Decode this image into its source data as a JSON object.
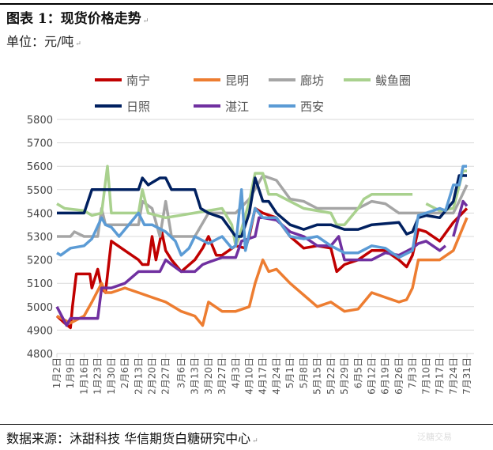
{
  "header": {
    "title": "图表 1：现货价格走势",
    "unit": "单位：元/吨",
    "paragraph_mark": "↵"
  },
  "footer": {
    "source": "数据来源：沐甜科技  华信期货白糖研究中心",
    "watermark": "泛糖交易"
  },
  "chart_data": {
    "type": "line",
    "title": "",
    "xlabel": "",
    "ylabel": "",
    "ylim": [
      4800,
      5800
    ],
    "yticks": [
      4800,
      4900,
      5000,
      5100,
      5200,
      5300,
      5400,
      5500,
      5600,
      5700,
      5800
    ],
    "grid": "horizontal",
    "legend_placement": "top",
    "xticks": [
      "1月2日",
      "1月9日",
      "1月16日",
      "1月23日",
      "1月30日",
      "2月6日",
      "2月13日",
      "2月20日",
      "2月27日",
      "3月6日",
      "3月13日",
      "3月20日",
      "3月27日",
      "4月3日",
      "4月10日",
      "4月17日",
      "4月24日",
      "5月1日",
      "5月8日",
      "5月15日",
      "5月22日",
      "5月29日",
      "6月5日",
      "6月12日",
      "6月19日",
      "6月26日",
      "7月3日",
      "7月10日",
      "7月17日",
      "7月24日",
      "7月31日"
    ],
    "series": [
      {
        "name": "南宁",
        "color": "#c00000",
        "points": [
          [
            "1月2日",
            4960
          ],
          [
            "1月6日",
            4930
          ],
          [
            "1月9日",
            4910
          ],
          [
            "1月10日",
            5000
          ],
          [
            "1月12日",
            5140
          ],
          [
            "1月19日",
            5140
          ],
          [
            "1月20日",
            5080
          ],
          [
            "1月23日",
            5160
          ],
          [
            "1月25日",
            5080
          ],
          [
            "1月27日",
            5060
          ],
          [
            "1月30日",
            5280
          ],
          [
            "2月6日",
            5240
          ],
          [
            "2月13日",
            5200
          ],
          [
            "2月15日",
            5180
          ],
          [
            "2月18日",
            5180
          ],
          [
            "2月20日",
            5300
          ],
          [
            "2月22日",
            5200
          ],
          [
            "2月25日",
            5320
          ],
          [
            "2月27日",
            5240
          ],
          [
            "3月1日",
            5200
          ],
          [
            "3月6日",
            5150
          ],
          [
            "3月13日",
            5200
          ],
          [
            "3月17日",
            5250
          ],
          [
            "3月20日",
            5300
          ],
          [
            "3月24日",
            5220
          ],
          [
            "3月27日",
            5220
          ],
          [
            "4月3日",
            5260
          ],
          [
            "4月8日",
            5250
          ],
          [
            "4月10日",
            5300
          ],
          [
            "4月13日",
            5420
          ],
          [
            "4月17日",
            5400
          ],
          [
            "4月24日",
            5380
          ],
          [
            "5月1日",
            5300
          ],
          [
            "5月8日",
            5250
          ],
          [
            "5月15日",
            5260
          ],
          [
            "5月22日",
            5250
          ],
          [
            "5月25日",
            5150
          ],
          [
            "5月29日",
            5180
          ],
          [
            "6月5日",
            5200
          ],
          [
            "6月12日",
            5240
          ],
          [
            "6月19日",
            5240
          ],
          [
            "6月26日",
            5200
          ],
          [
            "6月30日",
            5170
          ],
          [
            "7月3日",
            5220
          ],
          [
            "7月6日",
            5330
          ],
          [
            "7月10日",
            5320
          ],
          [
            "7月17日",
            5280
          ],
          [
            "7月24日",
            5360
          ],
          [
            "7月31日",
            5420
          ]
        ]
      },
      {
        "name": "昆明",
        "color": "#ed7d31",
        "points": [
          [
            "1月2日",
            4960
          ],
          [
            "1月9日",
            4930
          ],
          [
            "1月16日",
            4960
          ],
          [
            "1月20日",
            5020
          ],
          [
            "1月25日",
            5100
          ],
          [
            "1月27日",
            5060
          ],
          [
            "1月30日",
            5060
          ],
          [
            "2月6日",
            5080
          ],
          [
            "2月13日",
            5060
          ],
          [
            "2月20日",
            5040
          ],
          [
            "2月27日",
            5020
          ],
          [
            "3月6日",
            4980
          ],
          [
            "3月13日",
            4960
          ],
          [
            "3月17日",
            4920
          ],
          [
            "3月20日",
            5020
          ],
          [
            "3月27日",
            4980
          ],
          [
            "4月3日",
            4980
          ],
          [
            "4月10日",
            5000
          ],
          [
            "4月13日",
            5100
          ],
          [
            "4月17日",
            5200
          ],
          [
            "4月20日",
            5150
          ],
          [
            "4月24日",
            5160
          ],
          [
            "5月1日",
            5100
          ],
          [
            "5月8日",
            5050
          ],
          [
            "5月15日",
            5000
          ],
          [
            "5月22日",
            5020
          ],
          [
            "5月29日",
            4980
          ],
          [
            "6月5日",
            4990
          ],
          [
            "6月12日",
            5060
          ],
          [
            "6月19日",
            5040
          ],
          [
            "6月26日",
            5020
          ],
          [
            "6月30日",
            5030
          ],
          [
            "7月3日",
            5080
          ],
          [
            "7月6日",
            5200
          ],
          [
            "7月10日",
            5200
          ],
          [
            "7月17日",
            5200
          ],
          [
            "7月24日",
            5240
          ],
          [
            "7月31日",
            5380
          ]
        ]
      },
      {
        "name": "廊坊",
        "color": "#a5a5a5",
        "points": [
          [
            "1月2日",
            5300
          ],
          [
            "1月9日",
            5300
          ],
          [
            "1月11日",
            5320
          ],
          [
            "1月16日",
            5300
          ],
          [
            "1月23日",
            5300
          ],
          [
            "1月25日",
            5420
          ],
          [
            "1月27日",
            5350
          ],
          [
            "2月6日",
            5350
          ],
          [
            "2月13日",
            5350
          ],
          [
            "2月15日",
            5450
          ],
          [
            "2月20日",
            5420
          ],
          [
            "2月24日",
            5300
          ],
          [
            "2月27日",
            5450
          ],
          [
            "3月1日",
            5300
          ],
          [
            "3月13日",
            5300
          ],
          [
            "3月20日",
            5400
          ],
          [
            "4月3日",
            5400
          ],
          [
            "4月10日",
            5460
          ],
          [
            "4月17日",
            5560
          ],
          [
            "4月24日",
            5540
          ],
          [
            "5月1日",
            5460
          ],
          [
            "5月8日",
            5450
          ],
          [
            "5月15日",
            5420
          ],
          [
            "6月5日",
            5420
          ],
          [
            "6月12日",
            5450
          ],
          [
            "6月19日",
            5440
          ],
          [
            "6月26日",
            5400
          ],
          [
            "7月24日",
            5400
          ],
          [
            "7月27日",
            5450
          ],
          [
            "7月31日",
            5520
          ]
        ]
      },
      {
        "name": "鲅鱼圈",
        "color": "#a9d18e",
        "points": [
          [
            "1月2日",
            5440
          ],
          [
            "1月6日",
            5420
          ],
          [
            "1月16日",
            5410
          ],
          [
            "1月20日",
            5390
          ],
          [
            "1月25日",
            5400
          ],
          [
            "1月28日",
            5600
          ],
          [
            "1月30日",
            5400
          ],
          [
            "2月13日",
            5400
          ],
          [
            "2月15日",
            5500
          ],
          [
            "2月18日",
            5400
          ],
          [
            "2月27日",
            5380
          ],
          [
            "3月27日",
            5420
          ],
          [
            "4月1日",
            5350
          ],
          [
            "4月3日",
            5260
          ],
          [
            "4月5日",
            5300
          ],
          [
            "4月10日",
            5450
          ],
          [
            "4月13日",
            5570
          ],
          [
            "4月17日",
            5570
          ],
          [
            "4月20日",
            5480
          ],
          [
            "4月24日",
            5480
          ],
          [
            "5月1日",
            5450
          ],
          [
            "5月8日",
            5420
          ],
          [
            "5月22日",
            5400
          ],
          [
            "5月25日",
            5350
          ],
          [
            "5月29日",
            5350
          ],
          [
            "6月5日",
            5420
          ],
          [
            "6月8日",
            5460
          ],
          [
            "6月12日",
            5480
          ],
          [
            "7月3日",
            5480
          ],
          null,
          [
            "7月10日",
            5440
          ],
          [
            "7月17日",
            5410
          ],
          [
            "7月24日",
            5420
          ],
          [
            "7月29日",
            5580
          ],
          [
            "7月31日",
            5580
          ]
        ]
      },
      {
        "name": "日照",
        "color": "#002060",
        "points": [
          [
            "1月2日",
            5400
          ],
          [
            "1月16日",
            5400
          ],
          [
            "1月20日",
            5500
          ],
          [
            "2月13日",
            5500
          ],
          [
            "2月15日",
            5550
          ],
          [
            "2月18日",
            5520
          ],
          [
            "2月20日",
            5530
          ],
          [
            "2月24日",
            5550
          ],
          [
            "2月27日",
            5550
          ],
          [
            "3月1日",
            5500
          ],
          [
            "3月13日",
            5500
          ],
          [
            "3月16日",
            5420
          ],
          [
            "3月20日",
            5400
          ],
          [
            "3月27日",
            5380
          ],
          [
            "4月3日",
            5300
          ],
          [
            "4月6日",
            5300
          ],
          [
            "4月10日",
            5400
          ],
          [
            "4月13日",
            5550
          ],
          [
            "4月17日",
            5450
          ],
          [
            "4月20日",
            5450
          ],
          [
            "4月24日",
            5400
          ],
          [
            "5月1日",
            5350
          ],
          [
            "5月8日",
            5330
          ],
          [
            "5月15日",
            5350
          ],
          [
            "5月22日",
            5350
          ],
          [
            "5月29日",
            5330
          ],
          [
            "6月5日",
            5330
          ],
          [
            "6月12日",
            5350
          ],
          [
            "6月26日",
            5360
          ],
          [
            "6月30日",
            5310
          ],
          [
            "7月3日",
            5320
          ],
          [
            "7月6日",
            5380
          ],
          [
            "7月10日",
            5390
          ],
          [
            "7月17日",
            5380
          ],
          [
            "7月24日",
            5450
          ],
          [
            "7月27日",
            5560
          ],
          [
            "7月31日",
            5560
          ]
        ]
      },
      {
        "name": "湛江",
        "color": "#7030a0",
        "points": [
          [
            "1月2日",
            5000
          ],
          [
            "1月7日",
            4920
          ],
          [
            "1月9日",
            4950
          ],
          [
            "1月23日",
            4950
          ],
          [
            "1月25日",
            5080
          ],
          [
            "1月30日",
            5080
          ],
          [
            "2月6日",
            5100
          ],
          [
            "2月13日",
            5150
          ],
          [
            "2月24日",
            5150
          ],
          [
            "2月27日",
            5200
          ],
          [
            "3月1日",
            5180
          ],
          [
            "3月6日",
            5150
          ],
          [
            "3月13日",
            5150
          ],
          [
            "3月17日",
            5180
          ],
          [
            "3月20日",
            5190
          ],
          [
            "3月27日",
            5210
          ],
          [
            "4月3日",
            5210
          ],
          [
            "4月6日",
            5280
          ],
          [
            "4月13日",
            5300
          ],
          [
            "4月15日",
            5380
          ],
          [
            "4月17日",
            5380
          ],
          [
            "4月24日",
            5370
          ],
          [
            "5月1日",
            5320
          ],
          [
            "5月8日",
            5300
          ],
          [
            "5月15日",
            5260
          ],
          [
            "5月22日",
            5260
          ],
          [
            "5月26日",
            5300
          ],
          [
            "5月29日",
            5200
          ],
          [
            "6月12日",
            5200
          ],
          [
            "6月19日",
            5230
          ],
          [
            "6月26日",
            5220
          ],
          [
            "7月3日",
            5250
          ],
          [
            "7月6日",
            5270
          ],
          [
            "7月10日",
            5280
          ],
          [
            "7月17日",
            5240
          ],
          [
            "7月20日",
            5260
          ],
          null,
          [
            "7月24日",
            5300
          ],
          [
            "7月29日",
            5450
          ],
          [
            "7月31日",
            5430
          ]
        ]
      },
      {
        "name": "西安",
        "color": "#5b9bd5",
        "points": [
          [
            "1月2日",
            5230
          ],
          [
            "1月4日",
            5220
          ],
          [
            "1月9日",
            5250
          ],
          [
            "1月16日",
            5260
          ],
          [
            "1月20日",
            5290
          ],
          [
            "1月25日",
            5380
          ],
          [
            "1月27日",
            5350
          ],
          [
            "1月30日",
            5340
          ],
          [
            "2月3日",
            5300
          ],
          [
            "2月13日",
            5400
          ],
          [
            "2月16日",
            5350
          ],
          [
            "2月20日",
            5350
          ],
          [
            "2月27日",
            5320
          ],
          [
            "3月3日",
            5280
          ],
          [
            "3月6日",
            5220
          ],
          [
            "3月10日",
            5250
          ],
          [
            "3月13日",
            5300
          ],
          [
            "3月20日",
            5270
          ],
          [
            "3月27日",
            5300
          ],
          [
            "4月1日",
            5250
          ],
          [
            "4月3日",
            5260
          ],
          [
            "4月6日",
            5500
          ],
          [
            "4月8日",
            5240
          ],
          [
            "4月13日",
            5420
          ],
          [
            "4月17日",
            5380
          ],
          [
            "4月24日",
            5380
          ],
          [
            "5月1日",
            5300
          ],
          [
            "5月8日",
            5290
          ],
          [
            "5月15日",
            5300
          ],
          [
            "5月22日",
            5260
          ],
          [
            "5月29日",
            5230
          ],
          [
            "6月5日",
            5230
          ],
          [
            "6月12日",
            5260
          ],
          [
            "6月19日",
            5250
          ],
          [
            "6月26日",
            5210
          ],
          [
            "7月3日",
            5240
          ],
          [
            "7月6日",
            5390
          ],
          [
            "7月10日",
            5400
          ],
          [
            "7月17日",
            5420
          ],
          [
            "7月20日",
            5410
          ],
          [
            "7月24日",
            5520
          ],
          [
            "7月27日",
            5520
          ],
          [
            "7月29日",
            5600
          ],
          [
            "7月31日",
            5600
          ]
        ]
      }
    ]
  }
}
